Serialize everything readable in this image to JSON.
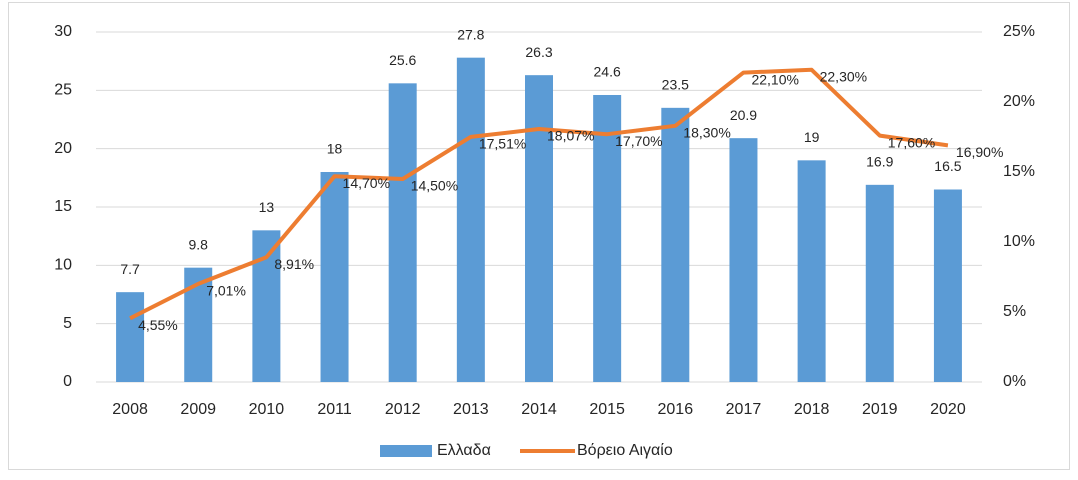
{
  "chart_data": {
    "type": "bar",
    "categories": [
      "2008",
      "2009",
      "2010",
      "2011",
      "2012",
      "2013",
      "2014",
      "2015",
      "2016",
      "2017",
      "2018",
      "2019",
      "2020"
    ],
    "series": [
      {
        "name": "Ελλαδα",
        "type": "bar",
        "color": "#5b9bd5",
        "values": [
          7.7,
          9.8,
          13,
          18,
          25.6,
          27.8,
          26.3,
          24.6,
          23.5,
          20.9,
          19,
          16.9,
          16.5
        ]
      },
      {
        "name": "Βόρειο Αιγαίο",
        "type": "line",
        "axis": "y2",
        "color": "#ed7d31",
        "values": [
          4.55,
          7.01,
          8.91,
          14.7,
          14.5,
          17.51,
          18.07,
          17.7,
          18.3,
          22.1,
          22.3,
          17.6,
          16.9
        ],
        "value_labels": [
          "4,55%",
          "7,01%",
          "8,91%",
          "14,70%",
          "14,50%",
          "17,51%",
          "18,07%",
          "17,70%",
          "18,30%",
          "22,10%",
          "22,30%",
          "17,60%",
          "16,90%"
        ]
      }
    ],
    "ylim": [
      0,
      30
    ],
    "yticks": [
      0,
      5,
      10,
      15,
      20,
      25,
      30
    ],
    "y2lim": [
      0,
      25
    ],
    "y2ticks": [
      {
        "value": 0,
        "label": "0%"
      },
      {
        "value": 5,
        "label": "5%"
      },
      {
        "value": 10,
        "label": "10%"
      },
      {
        "value": 15,
        "label": "15%"
      },
      {
        "value": 20,
        "label": "20%"
      },
      {
        "value": 25,
        "label": "25%"
      }
    ],
    "grid": true,
    "legend": "bottom"
  }
}
